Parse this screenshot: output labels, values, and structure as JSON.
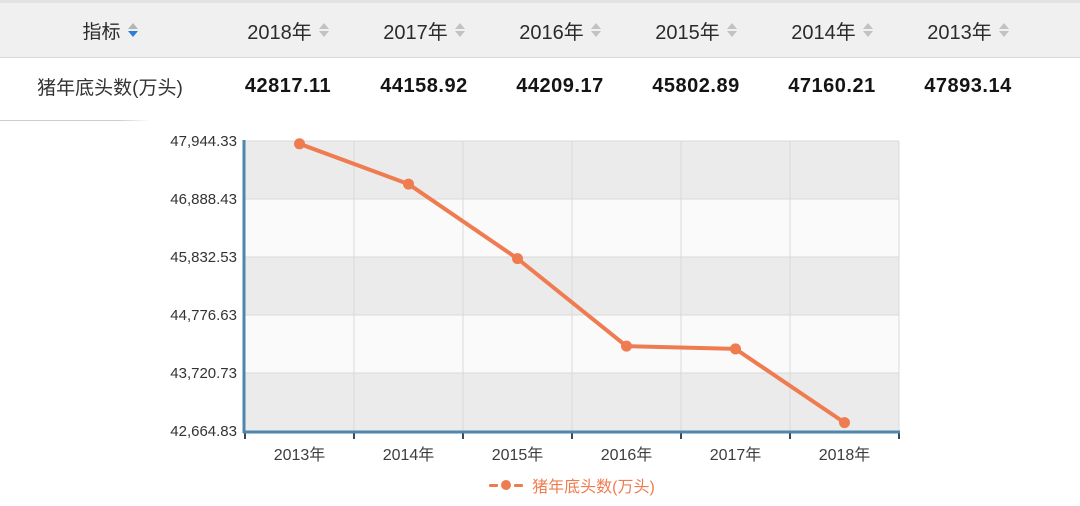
{
  "table": {
    "indicator_header": "指标",
    "year_columns": [
      "2018年",
      "2017年",
      "2016年",
      "2015年",
      "2014年",
      "2013年"
    ],
    "rows": [
      {
        "label": "猪年底头数(万头)",
        "values": [
          "42817.11",
          "44158.92",
          "44209.17",
          "45802.89",
          "47160.21",
          "47893.14"
        ]
      }
    ]
  },
  "chart_data": {
    "type": "line",
    "title": "",
    "xlabel": "",
    "ylabel": "",
    "categories": [
      "2013年",
      "2014年",
      "2015年",
      "2016年",
      "2017年",
      "2018年"
    ],
    "series": [
      {
        "name": "猪年底头数(万头)",
        "values": [
          47893.14,
          47160.21,
          45802.89,
          44209.17,
          44158.92,
          42817.11
        ]
      }
    ],
    "y_ticks": [
      "47,944.33",
      "46,888.43",
      "45,832.53",
      "44,776.63",
      "43,720.73",
      "42,664.83"
    ],
    "ylim": [
      42664.83,
      47944.33
    ],
    "grid": "alternating-horizontal-bands",
    "legend_position": "bottom",
    "colors": {
      "line": "#ef7c51",
      "axis": "#4e86ae",
      "band_dark": "#ebebeb",
      "band_light": "#fafafa",
      "gridline": "#d9d9d9",
      "tick": "#3c4a58"
    }
  }
}
